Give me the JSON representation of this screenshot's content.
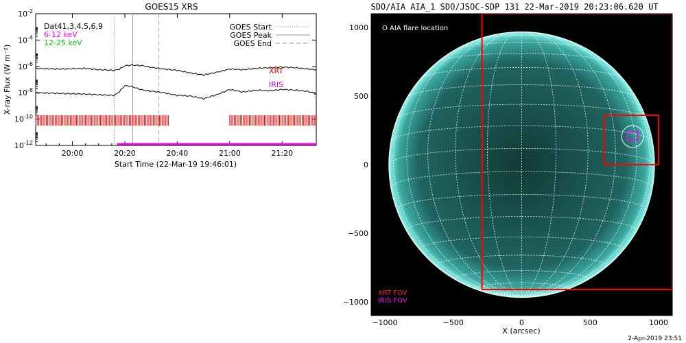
{
  "left_panel": {
    "title": "GOES15 XRS",
    "ylabel": "X-ray Flux (W m⁻²)",
    "xlabel": "Start Time (22-Mar-19 19:46:01)",
    "dat_text": "Dat41,3,4,5,6,9",
    "band1_label": "6-12 keV",
    "band2_label": "12-25 keV",
    "legend": [
      "GOES Start",
      "GOES Peak",
      "GOES End"
    ],
    "xrt_label": "XRT",
    "iris_label": "IRIS",
    "colors": {
      "band1": "#ff00ff",
      "band2": "#00cc00",
      "xrt": "#cc0000",
      "iris": "#cc00cc",
      "bars": "#ff0000",
      "iris_line": "#ff00ff"
    }
  },
  "right_panel": {
    "title": "SDO/AIA AIA_1 SDO/JSOC-SDP 131 22-Mar-2019 20:23:06.620 UT",
    "flare_label": "O AIA flare location",
    "xlabel": "X (arcsec)",
    "xrt_fov": "XRT FOV",
    "iris_fov": "IRIS FOV",
    "colors": {
      "disk": "#1f6f6a",
      "limb": "#7ff5ea",
      "fov": "#ff0000",
      "iris": "#ff00ff"
    }
  },
  "footer": {
    "timestamp": "2-Apr-2019 23:51"
  },
  "chart_data": [
    {
      "type": "line",
      "title": "GOES15 XRS",
      "xlabel": "Start Time (22-Mar-19 19:46:01)",
      "ylabel": "X-ray Flux (W m⁻²)",
      "yscale": "log",
      "ylim": [
        1e-12,
        0.01
      ],
      "xlim": [
        "19:46",
        "21:33"
      ],
      "x_ticks": [
        "20:00",
        "20:20",
        "20:40",
        "21:00",
        "21:20"
      ],
      "y_ticks": [
        -12,
        -10,
        -8,
        -6,
        -4,
        -2
      ],
      "events": {
        "start": "20:16",
        "peak": "20:23",
        "end": "20:33"
      },
      "series": [
        {
          "name": "6-12 keV",
          "x": [
            "19:46",
            "19:55",
            "20:05",
            "20:10",
            "20:16",
            "20:18",
            "20:20",
            "20:23",
            "20:27",
            "20:31",
            "20:35",
            "20:40",
            "20:45",
            "20:50",
            "20:55",
            "21:00",
            "21:05",
            "21:10",
            "21:15",
            "21:20",
            "21:25",
            "21:30",
            "21:33"
          ],
          "log_values": [
            -6.15,
            -6.2,
            -6.15,
            -6.25,
            -6.3,
            -6.2,
            -5.95,
            -5.9,
            -5.95,
            -6.1,
            -6.2,
            -6.3,
            -6.5,
            -6.65,
            -6.45,
            -6.2,
            -6.25,
            -6.15,
            -6.1,
            -6.05,
            -6.1,
            -6.2,
            -6.25
          ]
        },
        {
          "name": "12-25 keV",
          "x": [
            "19:46",
            "19:55",
            "20:05",
            "20:10",
            "20:16",
            "20:18",
            "20:20",
            "20:23",
            "20:27",
            "20:31",
            "20:35",
            "20:40",
            "20:45",
            "20:50",
            "20:55",
            "21:00",
            "21:05",
            "21:10",
            "21:15",
            "21:20",
            "21:25",
            "21:30",
            "21:33"
          ],
          "log_values": [
            -8.0,
            -8.05,
            -8.1,
            -8.15,
            -8.2,
            -7.9,
            -7.45,
            -7.55,
            -7.8,
            -7.9,
            -8.0,
            -8.2,
            -8.25,
            -8.45,
            -8.15,
            -7.75,
            -7.95,
            -7.8,
            -7.85,
            -7.75,
            -7.8,
            -7.9,
            -8.1
          ]
        }
      ],
      "coverage_bars": [
        {
          "name": "XRT",
          "from": "19:46",
          "to": "20:37"
        },
        {
          "name": "XRT",
          "from": "21:00",
          "to": "21:33"
        }
      ],
      "iris_coverage": {
        "from": "20:17",
        "to": "21:33"
      }
    },
    {
      "type": "scatter",
      "title": "SDO/AIA AIA_1 SDO/JSOC-SDP 131 22-Mar-2019 20:23:06.620 UT",
      "xlabel": "X (arcsec)",
      "xlim": [
        -1100,
        1100
      ],
      "ylim": [
        -1100,
        1100
      ],
      "x_ticks": [
        -1000,
        -500,
        0,
        500,
        1000
      ],
      "y_ticks": [
        -1000,
        -500,
        0,
        500,
        1000
      ],
      "flare_location": {
        "x": 810,
        "y": 205
      },
      "xrt_fov_large": {
        "x": [
          -290,
          1100
        ],
        "y": [
          -910,
          1100
        ]
      },
      "xrt_fov_small": {
        "x": [
          600,
          1000
        ],
        "y": [
          0,
          360
        ]
      },
      "iris_fov": {
        "x": [
          770,
          850
        ],
        "y": [
          180,
          240
        ]
      }
    }
  ]
}
